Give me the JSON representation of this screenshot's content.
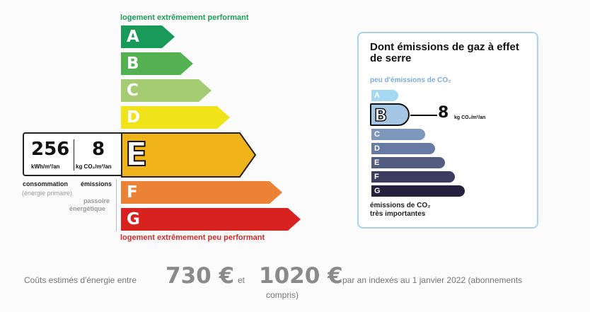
{
  "dpe": {
    "top_label": "logement extrêmement performant",
    "bottom_label": "logement extrêmement peu performant",
    "classes": [
      {
        "letter": "A",
        "color": "#1a9a5a"
      },
      {
        "letter": "B",
        "color": "#53b151"
      },
      {
        "letter": "C",
        "color": "#a5cc73"
      },
      {
        "letter": "D",
        "color": "#f1e31a"
      },
      {
        "letter": "E",
        "color": "#f0b41a"
      },
      {
        "letter": "F",
        "color": "#eb8236"
      },
      {
        "letter": "G",
        "color": "#d7221f"
      }
    ],
    "current_class": "E",
    "consumption_value": "256",
    "consumption_unit": "kWh/m²/an",
    "emissions_value": "8",
    "emissions_unit": "kg CO₂/m²/an",
    "consumption_caption": "consommation",
    "consumption_sub": "(énergie primaire)",
    "emissions_caption": "émissions",
    "passoire_line1": "passoire",
    "passoire_line2": "énergétique"
  },
  "ges": {
    "title": "Dont émissions de gaz à effet de serre",
    "low_label": "peu d'émissions de CO₂",
    "high_label_line1": "émissions de CO₂",
    "high_label_line2": "très importantes",
    "classes": [
      {
        "letter": "A",
        "color": "#a4d8f3"
      },
      {
        "letter": "B",
        "color": "#a6c6e6"
      },
      {
        "letter": "C",
        "color": "#7e98bd"
      },
      {
        "letter": "D",
        "color": "#687aa3"
      },
      {
        "letter": "E",
        "color": "#545c80"
      },
      {
        "letter": "F",
        "color": "#3c3c5e"
      },
      {
        "letter": "G",
        "color": "#25213c"
      }
    ],
    "current_class": "B",
    "value": "8",
    "unit": "kg CO₂/m²/an"
  },
  "costs": {
    "prefix": "Coûts estimés d'énergie entre",
    "low": "730 €",
    "and": "et",
    "high": "1020 €",
    "suffix": "par an indexés au 1 janvier 2022 (abonnements",
    "suffix2": "compris)"
  }
}
